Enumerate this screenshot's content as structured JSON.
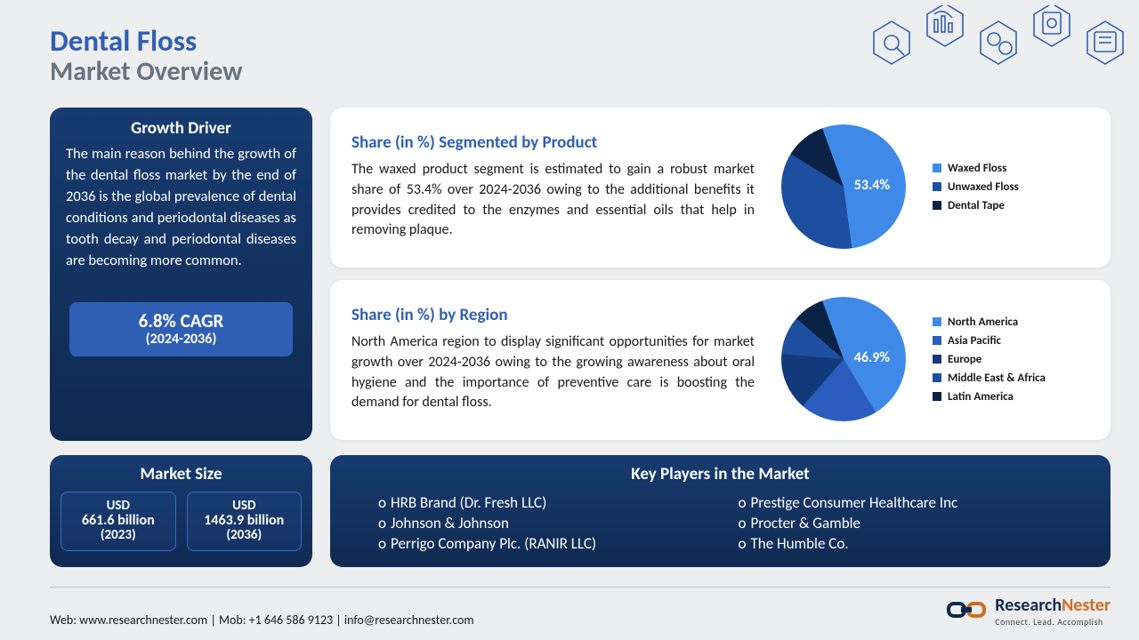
{
  "header": {
    "title_line1": "Dental Floss",
    "title_line2": "Market Overview"
  },
  "growth": {
    "heading": "Growth Driver",
    "body": "The main reason behind the growth of the dental floss market by the end of 2036 is the global prevalence of dental conditions and periodontal diseases as tooth decay and periodontal diseases are becoming more common.",
    "cagr_value": "6.8% CAGR",
    "cagr_period": "(2024-2036)"
  },
  "segment_card": {
    "heading": "Share (in %) Segmented by Product",
    "body": "The waxed product segment is estimated to gain a robust market share of 53.4% over 2024-2036 owing to the additional benefits it provides credited to the enzymes and essential oils that help in removing plaque.",
    "pie": {
      "type": "pie",
      "center_label": "53.4%",
      "slices": [
        {
          "label": "Waxed Floss",
          "value": 53.4,
          "color": "#3f8ae8"
        },
        {
          "label": "Unwaxed Floss",
          "value": 36.0,
          "color": "#1e4ea0"
        },
        {
          "label": "Dental Tape",
          "value": 10.6,
          "color": "#0a2245"
        }
      ]
    }
  },
  "region_card": {
    "heading": "Share (in %) by Region",
    "body": "North America region to display significant opportunities for market growth over 2024-2036 owing to the growing awareness about oral hygiene and the importance of preventive care is boosting the demand for dental floss.",
    "pie": {
      "type": "pie",
      "center_label": "46.9%",
      "slices": [
        {
          "label": "North America",
          "value": 46.9,
          "color": "#3f8ae8"
        },
        {
          "label": "Asia Pacific",
          "value": 20.0,
          "color": "#2a5dbf"
        },
        {
          "label": "Europe",
          "value": 15.0,
          "color": "#123a7a"
        },
        {
          "label": "Middle East & Africa",
          "value": 10.0,
          "color": "#1e4ea0"
        },
        {
          "label": "Latin America",
          "value": 8.1,
          "color": "#0a2245"
        }
      ]
    }
  },
  "market_size": {
    "heading": "Market Size",
    "boxes": [
      {
        "unit": "USD",
        "value": "661.6 billion",
        "year": "(2023)"
      },
      {
        "unit": "USD",
        "value": "1463.9 billion",
        "year": "(2036)"
      }
    ]
  },
  "key_players": {
    "heading": "Key Players in the Market",
    "col1": [
      "HRB Brand (Dr. Fresh LLC)",
      "Johnson & Johnson",
      "Perrigo Company Plc. (RANIR LLC)"
    ],
    "col2": [
      "Prestige Consumer Healthcare Inc",
      "Procter & Gamble",
      "The Humble Co."
    ]
  },
  "footer": {
    "contact": "Web: www.researchnester.com | Mob: +1 646 586 9123 | info@researchnester.com",
    "logo_part1": "Research",
    "logo_part2": "Nester",
    "tagline": "Connect. Lead. Accomplish"
  },
  "style": {
    "title_color": "#2f5fb5",
    "subtitle_color": "#6b7280",
    "body_fontsize": 16,
    "card_bg": "#ffffff",
    "page_bg": "#edeef0",
    "navy_bg": "#0f2a52",
    "accent_blue": "#2f5fb5"
  }
}
